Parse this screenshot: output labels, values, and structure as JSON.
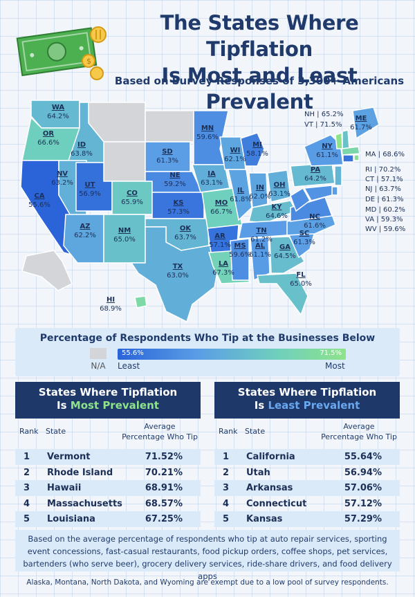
{
  "title_line1": "The States Where Tipflation",
  "title_line2": "Is Most and Least Prevalent",
  "subtitle": "Based on Survey Responses of 3,300+ Americans",
  "colors": {
    "navy": "#1d3869",
    "scale_low": "#2a64d8",
    "scale_high": "#8ee38a",
    "na": "#d3d5d9"
  },
  "chart_data": {
    "type": "choropleth",
    "title": "Percentage of Respondents Who Tip at the Businesses Below",
    "unit": "%",
    "scale": {
      "min": 55.6,
      "max": 71.5,
      "min_label": "Least",
      "max_label": "Most",
      "na_label": "N/A"
    },
    "states": [
      {
        "abbr": "WA",
        "value": 64.2,
        "label": "64.2%"
      },
      {
        "abbr": "OR",
        "value": 66.6,
        "label": "66.6%"
      },
      {
        "abbr": "CA",
        "value": 55.6,
        "label": "55.6%"
      },
      {
        "abbr": "ID",
        "value": 63.8,
        "label": "63.8%"
      },
      {
        "abbr": "NV",
        "value": 63.2,
        "label": "63.2%"
      },
      {
        "abbr": "UT",
        "value": 56.9,
        "label": "56.9%"
      },
      {
        "abbr": "AZ",
        "value": 62.2,
        "label": "62.2%"
      },
      {
        "abbr": "CO",
        "value": 65.9,
        "label": "65.9%"
      },
      {
        "abbr": "NM",
        "value": 65.0,
        "label": "65.0%"
      },
      {
        "abbr": "SD",
        "value": 61.3,
        "label": "61.3%"
      },
      {
        "abbr": "NE",
        "value": 59.2,
        "label": "59.2%"
      },
      {
        "abbr": "KS",
        "value": 57.3,
        "label": "57.3%"
      },
      {
        "abbr": "OK",
        "value": 63.7,
        "label": "63.7%"
      },
      {
        "abbr": "TX",
        "value": 63.0,
        "label": "63.0%"
      },
      {
        "abbr": "MN",
        "value": 59.6,
        "label": "59.6%"
      },
      {
        "abbr": "IA",
        "value": 63.1,
        "label": "63.1%"
      },
      {
        "abbr": "MO",
        "value": 66.7,
        "label": "66.7%"
      },
      {
        "abbr": "AR",
        "value": 57.1,
        "label": "57.1%"
      },
      {
        "abbr": "LA",
        "value": 67.3,
        "label": "67.3%"
      },
      {
        "abbr": "WI",
        "value": 62.1,
        "label": "62.1%"
      },
      {
        "abbr": "IL",
        "value": 61.8,
        "label": "61.8%"
      },
      {
        "abbr": "MI",
        "value": 58.1,
        "label": "58.1%"
      },
      {
        "abbr": "IN",
        "value": 62.0,
        "label": "62.0%"
      },
      {
        "abbr": "OH",
        "value": 63.1,
        "label": "63.1%"
      },
      {
        "abbr": "KY",
        "value": 64.6,
        "label": "64.6%"
      },
      {
        "abbr": "TN",
        "value": 61.2,
        "label": "61.2%"
      },
      {
        "abbr": "MS",
        "value": 59.6,
        "label": "59.6%"
      },
      {
        "abbr": "AL",
        "value": 61.1,
        "label": "61.1%"
      },
      {
        "abbr": "GA",
        "value": 64.5,
        "label": "64.5%"
      },
      {
        "abbr": "FL",
        "value": 65.0,
        "label": "65.0%"
      },
      {
        "abbr": "SC",
        "value": 61.3,
        "label": "61.3%"
      },
      {
        "abbr": "NC",
        "value": 61.6,
        "label": "61.6%"
      },
      {
        "abbr": "PA",
        "value": 64.2,
        "label": "64.2%"
      },
      {
        "abbr": "NY",
        "value": 61.1,
        "label": "61.1%"
      },
      {
        "abbr": "ME",
        "value": 61.7,
        "label": "61.7%"
      },
      {
        "abbr": "HI",
        "value": 68.9,
        "label": "68.9%"
      },
      {
        "abbr": "NH",
        "value": 65.2,
        "label": "65.2%"
      },
      {
        "abbr": "VT",
        "value": 71.5,
        "label": "71.5%"
      },
      {
        "abbr": "MA",
        "value": 68.6,
        "label": "68.6%"
      },
      {
        "abbr": "RI",
        "value": 70.2,
        "label": "70.2%"
      },
      {
        "abbr": "CT",
        "value": 57.1,
        "label": "57.1%"
      },
      {
        "abbr": "NJ",
        "value": 63.7,
        "label": "63.7%"
      },
      {
        "abbr": "DE",
        "value": 61.3,
        "label": "61.3%"
      },
      {
        "abbr": "MD",
        "value": 60.2,
        "label": "60.2%"
      },
      {
        "abbr": "VA",
        "value": 59.3,
        "label": "59.3%"
      },
      {
        "abbr": "WV",
        "value": 59.6,
        "label": "59.6%"
      }
    ],
    "na_states": [
      "MT",
      "WY",
      "ND",
      "AK"
    ]
  },
  "most_table": {
    "title_line1": "States Where Tipflation",
    "title_prefix": "Is ",
    "title_highlight": "Most Prevalent",
    "col_rank": "Rank",
    "col_state": "State",
    "col_avg": "Average Percentage Who Tip",
    "rows": [
      {
        "rank": "1",
        "state": "Vermont",
        "value": "71.52%"
      },
      {
        "rank": "2",
        "state": "Rhode Island",
        "value": "70.21%"
      },
      {
        "rank": "3",
        "state": "Hawaii",
        "value": "68.91%"
      },
      {
        "rank": "4",
        "state": "Massachusetts",
        "value": "68.57%"
      },
      {
        "rank": "5",
        "state": "Louisiana",
        "value": "67.25%"
      }
    ]
  },
  "least_table": {
    "title_line1": "States Where Tipflation",
    "title_prefix": "Is ",
    "title_highlight": "Least Prevalent",
    "col_rank": "Rank",
    "col_state": "State",
    "col_avg": "Average Percentage Who Tip",
    "rows": [
      {
        "rank": "1",
        "state": "California",
        "value": "55.64%"
      },
      {
        "rank": "2",
        "state": "Utah",
        "value": "56.94%"
      },
      {
        "rank": "3",
        "state": "Arkansas",
        "value": "57.06%"
      },
      {
        "rank": "4",
        "state": "Connecticut",
        "value": "57.12%"
      },
      {
        "rank": "5",
        "state": "Kansas",
        "value": "57.29%"
      }
    ]
  },
  "footer_text": "Based on the average percentage of respondents who tip at auto repair services, sporting event concessions, fast-casual restaurants, food pickup orders, coffee shops, pet services, bartenders (who serve beer), grocery delivery services, ride-share drivers, and food delivery apps",
  "footnote": "Alaska, Montana, North Dakota, and Wyoming are exempt due to a low pool of survey respondents."
}
